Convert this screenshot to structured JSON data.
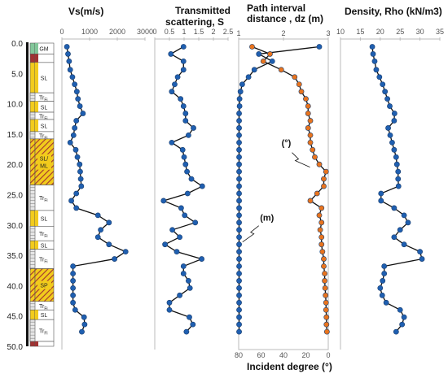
{
  "depth_axis": {
    "ticks": [
      "0.0",
      "5.0",
      "10.0",
      "15.0",
      "20.0",
      "25.0",
      "30.0",
      "35.0",
      "40.0",
      "45.0",
      "50.0"
    ],
    "range": [
      0,
      50
    ]
  },
  "soil_column": [
    {
      "from": 0.0,
      "to": 1.8,
      "label": "GM",
      "color": "#82c79a",
      "text_color": "#222222"
    },
    {
      "from": 1.8,
      "to": 3.2,
      "label": "ML",
      "color": "#a03232",
      "text_color": "#ffffff"
    },
    {
      "from": 3.2,
      "to": 8.2,
      "label": "SL",
      "color": "#f2cb1c",
      "text_color": "#222222"
    },
    {
      "from": 8.2,
      "to": 9.6,
      "label": "Tr",
      "sub": "Fi",
      "color": "#ffffff",
      "text_color": "#333333"
    },
    {
      "from": 9.6,
      "to": 11.4,
      "label": "SL",
      "color": "#f2cb1c",
      "text_color": "#222222"
    },
    {
      "from": 11.4,
      "to": 12.6,
      "label": "Tr",
      "sub": "Fi",
      "color": "#ffffff",
      "text_color": "#333333"
    },
    {
      "from": 12.6,
      "to": 14.6,
      "label": "SL",
      "color": "#f2cb1c",
      "text_color": "#222222"
    },
    {
      "from": 14.6,
      "to": 15.8,
      "label": "Tr",
      "sub": "Fi",
      "color": "#ffffff",
      "text_color": "#333333"
    },
    {
      "from": 15.8,
      "to": 23.4,
      "label": "SL/ ML",
      "color": "#f2cb1c",
      "hatch": true,
      "text_color": "#222222"
    },
    {
      "from": 23.4,
      "to": 27.6,
      "label": "Tr",
      "sub": "Fi",
      "color": "#ffffff",
      "text_color": "#333333"
    },
    {
      "from": 27.6,
      "to": 30.2,
      "label": "SL",
      "color": "#f2cb1c",
      "text_color": "#222222"
    },
    {
      "from": 30.2,
      "to": 32.6,
      "label": "Tr",
      "sub": "Fi",
      "color": "#ffffff",
      "text_color": "#333333"
    },
    {
      "from": 32.6,
      "to": 34.0,
      "label": "SL",
      "color": "#f2cb1c",
      "text_color": "#222222"
    },
    {
      "from": 34.0,
      "to": 37.2,
      "label": "Tr",
      "sub": "Fi",
      "color": "#ffffff",
      "text_color": "#333333"
    },
    {
      "from": 37.2,
      "to": 42.6,
      "label": "SP",
      "color": "#f2cb1c",
      "hatch": true,
      "text_color": "#222222"
    },
    {
      "from": 42.6,
      "to": 44.0,
      "label": "Tr",
      "sub": "Fi",
      "color": "#ffffff",
      "text_color": "#333333"
    },
    {
      "from": 44.0,
      "to": 45.6,
      "label": "SL",
      "color": "#f2cb1c",
      "text_color": "#222222"
    },
    {
      "from": 45.6,
      "to": 49.2,
      "label": "Tr",
      "sub": "Fi",
      "color": "#ffffff",
      "text_color": "#333333"
    },
    {
      "from": 49.2,
      "to": 50.0,
      "label": "",
      "color": "#a03232",
      "text_color": "#ffffff"
    }
  ],
  "chart_data": [
    {
      "type": "line",
      "title": "Vs(m/s)",
      "xlim": [
        0,
        3000
      ],
      "xticks": [
        "0",
        "1000",
        "2000",
        "3000"
      ],
      "ylabel": "",
      "series": [
        {
          "color": "#1f5fb0",
          "depth": [
            0.6,
            1.8,
            3.0,
            4.4,
            5.6,
            6.8,
            8.0,
            9.2,
            10.4,
            11.6,
            12.8,
            14.0,
            15.2,
            16.4,
            17.6,
            18.8,
            20.0,
            21.2,
            22.4,
            23.6,
            24.8,
            26.0,
            27.2,
            28.4,
            29.6,
            30.8,
            32.0,
            33.2,
            34.4,
            35.6,
            36.8,
            38.0,
            39.2,
            40.4,
            41.6,
            42.8,
            44.0,
            45.2,
            46.4,
            47.6
          ],
          "values": [
            180,
            220,
            260,
            300,
            380,
            460,
            540,
            580,
            650,
            760,
            520,
            460,
            420,
            300,
            500,
            560,
            640,
            660,
            680,
            700,
            520,
            340,
            520,
            1300,
            1700,
            1400,
            1300,
            1700,
            2300,
            1900,
            400,
            400,
            400,
            400,
            400,
            400,
            480,
            800,
            820,
            720
          ]
        }
      ]
    },
    {
      "type": "line",
      "title": "Transmitted scattering, S",
      "xlim": [
        0,
        2.5
      ],
      "xticks": [
        "0",
        "0.5",
        "1",
        "1.5",
        "2",
        "2.5"
      ],
      "series": [
        {
          "color": "#1f5fb0",
          "depth": [
            0.6,
            1.8,
            3.0,
            4.4,
            5.6,
            6.8,
            8.0,
            9.2,
            10.4,
            11.6,
            12.8,
            14.0,
            15.2,
            16.4,
            17.6,
            18.8,
            20.0,
            21.2,
            22.4,
            23.6,
            24.8,
            26.0,
            27.2,
            28.4,
            29.6,
            30.8,
            32.0,
            33.2,
            34.4,
            35.6,
            36.8,
            38.0,
            39.2,
            40.4,
            41.6,
            42.8,
            44.0,
            45.2,
            46.4,
            47.6
          ],
          "values": [
            0.98,
            0.55,
            0.98,
            0.98,
            0.78,
            0.68,
            0.58,
            0.88,
            0.98,
            1.05,
            1.05,
            1.32,
            1.15,
            0.58,
            0.95,
            1.0,
            1.05,
            1.1,
            1.25,
            1.62,
            1.12,
            0.3,
            0.9,
            1.02,
            1.38,
            0.6,
            0.85,
            0.35,
            0.75,
            1.6,
            0.98,
            0.98,
            1.15,
            1.2,
            0.85,
            0.5,
            0.5,
            1.18,
            1.3,
            1.08
          ]
        }
      ]
    },
    {
      "type": "line",
      "title": "Path interval distance , dz (m)",
      "xlim": [
        1,
        3
      ],
      "xticks": [
        "1",
        "2",
        "3"
      ],
      "xlabel_bottom": "Incident degree (°)",
      "xticks_bottom": [
        "80",
        "60",
        "40",
        "20",
        "0"
      ],
      "xlim_bottom": [
        80,
        0
      ],
      "annotations": [
        {
          "text": "(°)",
          "at_depth": 21.0,
          "at_x": 2.7
        },
        {
          "text": "(m)",
          "at_depth": 32.0,
          "at_x": 1.05
        }
      ],
      "series": [
        {
          "name": "(m)",
          "color": "#1f5fb0",
          "depth": [
            0.6,
            1.8,
            3.0,
            4.4,
            5.6,
            6.8,
            8.0,
            9.2,
            10.4,
            11.6,
            12.8,
            14.0,
            15.2,
            16.4,
            17.6,
            18.8,
            20.0,
            21.2,
            22.4,
            23.6,
            24.8,
            26.0,
            27.2,
            28.4,
            29.6,
            30.8,
            32.0,
            33.2,
            34.4,
            35.6,
            36.8,
            38.0,
            39.2,
            40.4,
            41.6,
            42.8,
            44.0,
            45.2,
            46.4,
            47.6
          ],
          "values": [
            2.8,
            1.45,
            1.75,
            1.35,
            1.22,
            1.08,
            1.04,
            1.02,
            1.02,
            1.01,
            1.01,
            1.01,
            1.01,
            1.01,
            1.01,
            1.01,
            1.01,
            1.01,
            1.01,
            1.01,
            1.01,
            1.01,
            1.01,
            1.01,
            1.01,
            1.01,
            1.01,
            1.01,
            1.01,
            1.01,
            1.01,
            1.01,
            1.01,
            1.01,
            1.01,
            1.01,
            1.01,
            1.01,
            1.01,
            1.01
          ]
        },
        {
          "name": "(°)",
          "color": "#e8741e",
          "depth": [
            0.6,
            1.8,
            3.0,
            4.4,
            5.6,
            6.8,
            8.0,
            9.2,
            10.4,
            11.6,
            12.8,
            14.0,
            15.2,
            16.4,
            17.6,
            18.8,
            20.0,
            21.2,
            22.4,
            23.6,
            24.8,
            26.0,
            27.2,
            28.4,
            29.6,
            30.8,
            32.0,
            33.2,
            34.4,
            35.6,
            36.8,
            38.0,
            39.2,
            40.4,
            41.6,
            42.8,
            44.0,
            45.2,
            46.4,
            47.6
          ],
          "values": [
            1.3,
            1.7,
            1.55,
            1.95,
            2.25,
            2.35,
            2.4,
            2.5,
            2.55,
            2.55,
            2.6,
            2.55,
            2.6,
            2.6,
            2.65,
            2.7,
            2.8,
            2.95,
            2.9,
            2.9,
            2.75,
            2.6,
            2.85,
            2.8,
            2.85,
            2.82,
            2.85,
            2.85,
            2.87,
            2.9,
            2.9,
            2.92,
            2.92,
            2.93,
            2.94,
            2.95,
            2.95,
            2.96,
            2.96,
            2.97
          ]
        }
      ]
    },
    {
      "type": "line",
      "title": "Density, Rho (kN/m3)",
      "xlim": [
        10,
        35
      ],
      "xticks": [
        "10",
        "15",
        "20",
        "25",
        "30",
        "35"
      ],
      "series": [
        {
          "color": "#1f5fb0",
          "depth": [
            0.6,
            1.8,
            3.0,
            4.4,
            5.6,
            6.8,
            8.0,
            9.2,
            10.4,
            11.6,
            12.8,
            14.0,
            15.2,
            16.4,
            17.6,
            18.8,
            20.0,
            21.2,
            22.4,
            23.6,
            24.8,
            26.0,
            27.2,
            28.4,
            29.6,
            30.8,
            32.0,
            33.2,
            34.4,
            35.6,
            36.8,
            38.0,
            39.2,
            40.4,
            41.6,
            42.8,
            44.0,
            45.2,
            46.4,
            47.6
          ],
          "values": [
            18.0,
            18.2,
            18.6,
            19.0,
            19.8,
            20.6,
            21.2,
            21.8,
            22.4,
            23.6,
            23.5,
            22.0,
            22.5,
            23.0,
            23.5,
            24.0,
            24.2,
            24.5,
            24.5,
            24.6,
            20.2,
            20.2,
            23.5,
            26.0,
            27.0,
            25.0,
            23.5,
            26.0,
            30.0,
            30.5,
            21.0,
            21.0,
            20.6,
            20.0,
            20.5,
            21.5,
            25.0,
            26.0,
            25.5,
            24.0
          ]
        }
      ]
    }
  ]
}
